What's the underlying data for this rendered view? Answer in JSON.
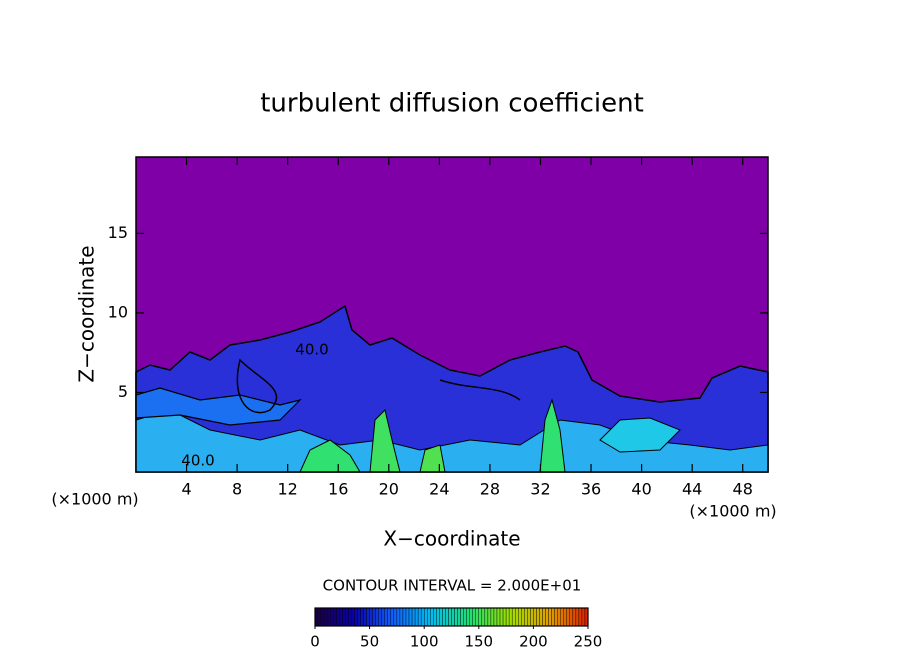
{
  "chart_data": {
    "type": "contour",
    "title": "turbulent diffusion coefficient",
    "x_label": "X−coordinate",
    "y_label": "Z−coordinate",
    "x_unit_label": "(×1000 m)",
    "xlim": [
      0,
      50
    ],
    "xticks": [
      4,
      8,
      12,
      16,
      20,
      24,
      28,
      32,
      36,
      40,
      44,
      48
    ],
    "ylim": [
      0,
      19.8
    ],
    "yticks": [
      5,
      10,
      15
    ],
    "contour_interval": "CONTOUR INTERVAL = 2.000E+01",
    "contour_labels": [
      "40.0",
      "40.0"
    ],
    "colorbar": {
      "lim": [
        0,
        250
      ],
      "ticks": [
        0,
        50,
        100,
        150,
        200,
        250
      ],
      "colormap": [
        "#1a0040",
        "#0a00a8",
        "#1060ff",
        "#00c0f0",
        "#20e070",
        "#a0e000",
        "#e0a000",
        "#e02000"
      ]
    }
  }
}
